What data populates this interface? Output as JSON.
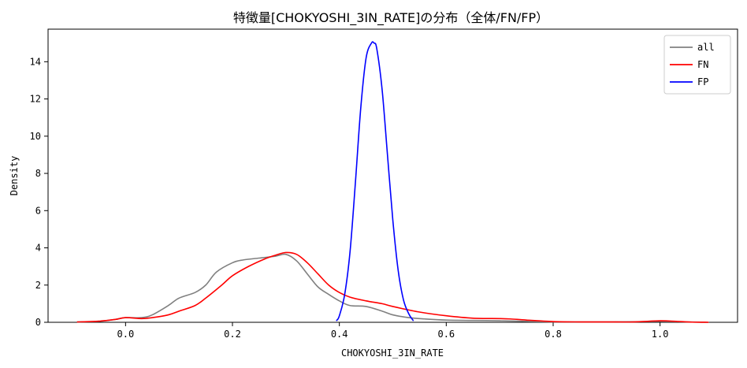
{
  "chart_data": {
    "type": "line",
    "title": "特徴量[CHOKYOSHI_3IN_RATE]の分布（全体/FN/FP）",
    "xlabel": "CHOKYOSHI_3IN_RATE",
    "ylabel": "Density",
    "xlim": [
      -0.145,
      1.145
    ],
    "ylim": [
      0,
      15.75
    ],
    "xticks": [
      0.0,
      0.2,
      0.4,
      0.6,
      0.8,
      1.0
    ],
    "xtick_labels": [
      "0.0",
      "0.2",
      "0.4",
      "0.6",
      "0.8",
      "1.0"
    ],
    "yticks": [
      0,
      2,
      4,
      6,
      8,
      10,
      12,
      14
    ],
    "ytick_labels": [
      "0",
      "2",
      "4",
      "6",
      "8",
      "10",
      "12",
      "14"
    ],
    "legend": {
      "position": "top-right"
    },
    "series": [
      {
        "name": "all",
        "color": "#808080",
        "x": [
          -0.09,
          -0.05,
          -0.02,
          0.0,
          0.03,
          0.05,
          0.08,
          0.1,
          0.13,
          0.15,
          0.17,
          0.2,
          0.22,
          0.25,
          0.28,
          0.3,
          0.32,
          0.34,
          0.36,
          0.38,
          0.4,
          0.42,
          0.45,
          0.48,
          0.5,
          0.53,
          0.56,
          0.6,
          0.65,
          0.7,
          0.75,
          0.8,
          0.85,
          0.9,
          0.95,
          1.0,
          1.05,
          1.09
        ],
        "y": [
          0.02,
          0.05,
          0.15,
          0.25,
          0.25,
          0.4,
          0.9,
          1.3,
          1.6,
          2.0,
          2.7,
          3.2,
          3.35,
          3.45,
          3.55,
          3.65,
          3.3,
          2.6,
          1.9,
          1.5,
          1.15,
          0.9,
          0.85,
          0.6,
          0.4,
          0.25,
          0.18,
          0.12,
          0.1,
          0.08,
          0.05,
          0.02,
          0.02,
          0.02,
          0.03,
          0.05,
          0.02,
          0.0
        ]
      },
      {
        "name": "FN",
        "color": "#ff0000",
        "x": [
          -0.09,
          -0.05,
          -0.02,
          0.0,
          0.03,
          0.05,
          0.08,
          0.1,
          0.13,
          0.15,
          0.18,
          0.2,
          0.23,
          0.26,
          0.28,
          0.3,
          0.32,
          0.34,
          0.36,
          0.38,
          0.4,
          0.42,
          0.45,
          0.48,
          0.5,
          0.55,
          0.6,
          0.65,
          0.7,
          0.72,
          0.75,
          0.8,
          0.85,
          0.9,
          0.95,
          1.0,
          1.03,
          1.06,
          1.09
        ],
        "y": [
          0.02,
          0.06,
          0.15,
          0.25,
          0.2,
          0.25,
          0.4,
          0.6,
          0.9,
          1.3,
          2.0,
          2.5,
          3.0,
          3.4,
          3.6,
          3.75,
          3.65,
          3.2,
          2.6,
          2.0,
          1.6,
          1.35,
          1.15,
          1.0,
          0.85,
          0.55,
          0.35,
          0.22,
          0.2,
          0.18,
          0.12,
          0.04,
          0.02,
          0.02,
          0.02,
          0.08,
          0.05,
          0.01,
          0.0
        ]
      },
      {
        "name": "FP",
        "color": "#0000ff",
        "x": [
          0.395,
          0.4,
          0.41,
          0.42,
          0.43,
          0.44,
          0.45,
          0.46,
          0.465,
          0.47,
          0.48,
          0.49,
          0.5,
          0.51,
          0.52,
          0.53,
          0.538
        ],
        "y": [
          0.1,
          0.35,
          1.5,
          3.8,
          7.5,
          11.5,
          14.2,
          15.0,
          15.0,
          14.7,
          12.5,
          9.0,
          5.5,
          2.8,
          1.2,
          0.45,
          0.1
        ]
      }
    ]
  }
}
